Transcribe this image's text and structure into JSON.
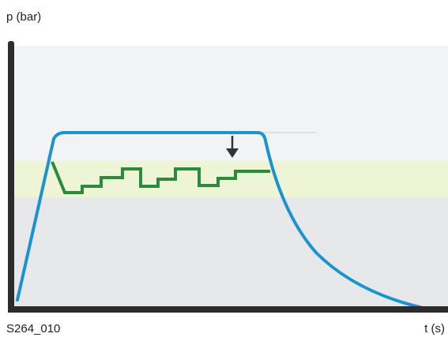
{
  "figure": {
    "y_axis_label": "p (bar)",
    "x_axis_label": "t (s)",
    "figure_id": "S264_010"
  },
  "colors": {
    "axis": "#2c2c2c",
    "blue_curve": "#1a93cf",
    "green_curve": "#2b8b3a",
    "band": "#eef4d6",
    "upper_zone": "#f2f3f4",
    "lower_zone": "#e6e8ea",
    "arrow": "#333333"
  }
}
